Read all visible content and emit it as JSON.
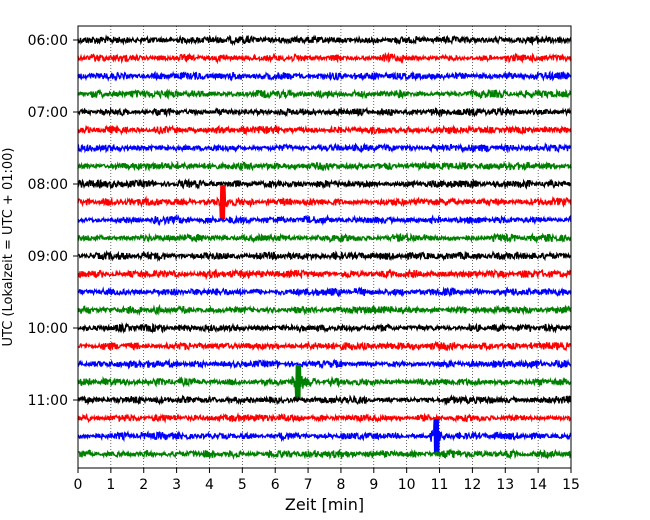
{
  "chart_data": {
    "type": "line",
    "subtype": "helicorder",
    "xlabel": "Zeit  [min]",
    "ylabel": "UTC (Lokalzeit = UTC + 01:00)",
    "xlim": [
      0,
      15
    ],
    "x_ticks": [
      0,
      1,
      2,
      3,
      4,
      5,
      6,
      7,
      8,
      9,
      10,
      11,
      12,
      13,
      14,
      15
    ],
    "y_ticks": [
      "06:00",
      "07:00",
      "08:00",
      "09:00",
      "10:00",
      "11:00"
    ],
    "grid": "vertical dotted lines at each minute",
    "line_colors": [
      "#000000",
      "#ff0000",
      "#0000ff",
      "#008000"
    ],
    "traces": [
      {
        "start": "06:00",
        "color": "#000000"
      },
      {
        "start": "06:15",
        "color": "#ff0000"
      },
      {
        "start": "06:30",
        "color": "#0000ff"
      },
      {
        "start": "06:45",
        "color": "#008000"
      },
      {
        "start": "07:00",
        "color": "#000000"
      },
      {
        "start": "07:15",
        "color": "#ff0000"
      },
      {
        "start": "07:30",
        "color": "#0000ff"
      },
      {
        "start": "07:45",
        "color": "#008000"
      },
      {
        "start": "08:00",
        "color": "#000000"
      },
      {
        "start": "08:15",
        "color": "#ff0000",
        "spike_minute": 4.4
      },
      {
        "start": "08:30",
        "color": "#0000ff"
      },
      {
        "start": "08:45",
        "color": "#008000"
      },
      {
        "start": "09:00",
        "color": "#000000"
      },
      {
        "start": "09:15",
        "color": "#ff0000"
      },
      {
        "start": "09:30",
        "color": "#0000ff"
      },
      {
        "start": "09:45",
        "color": "#008000"
      },
      {
        "start": "10:00",
        "color": "#000000"
      },
      {
        "start": "10:15",
        "color": "#ff0000"
      },
      {
        "start": "10:30",
        "color": "#0000ff"
      },
      {
        "start": "10:45",
        "color": "#008000",
        "spike_minute": 6.7
      },
      {
        "start": "11:00",
        "color": "#000000"
      },
      {
        "start": "11:15",
        "color": "#ff0000"
      },
      {
        "start": "11:30",
        "color": "#0000ff",
        "spike_minute": 10.9
      },
      {
        "start": "11:45",
        "color": "#008000"
      }
    ]
  }
}
